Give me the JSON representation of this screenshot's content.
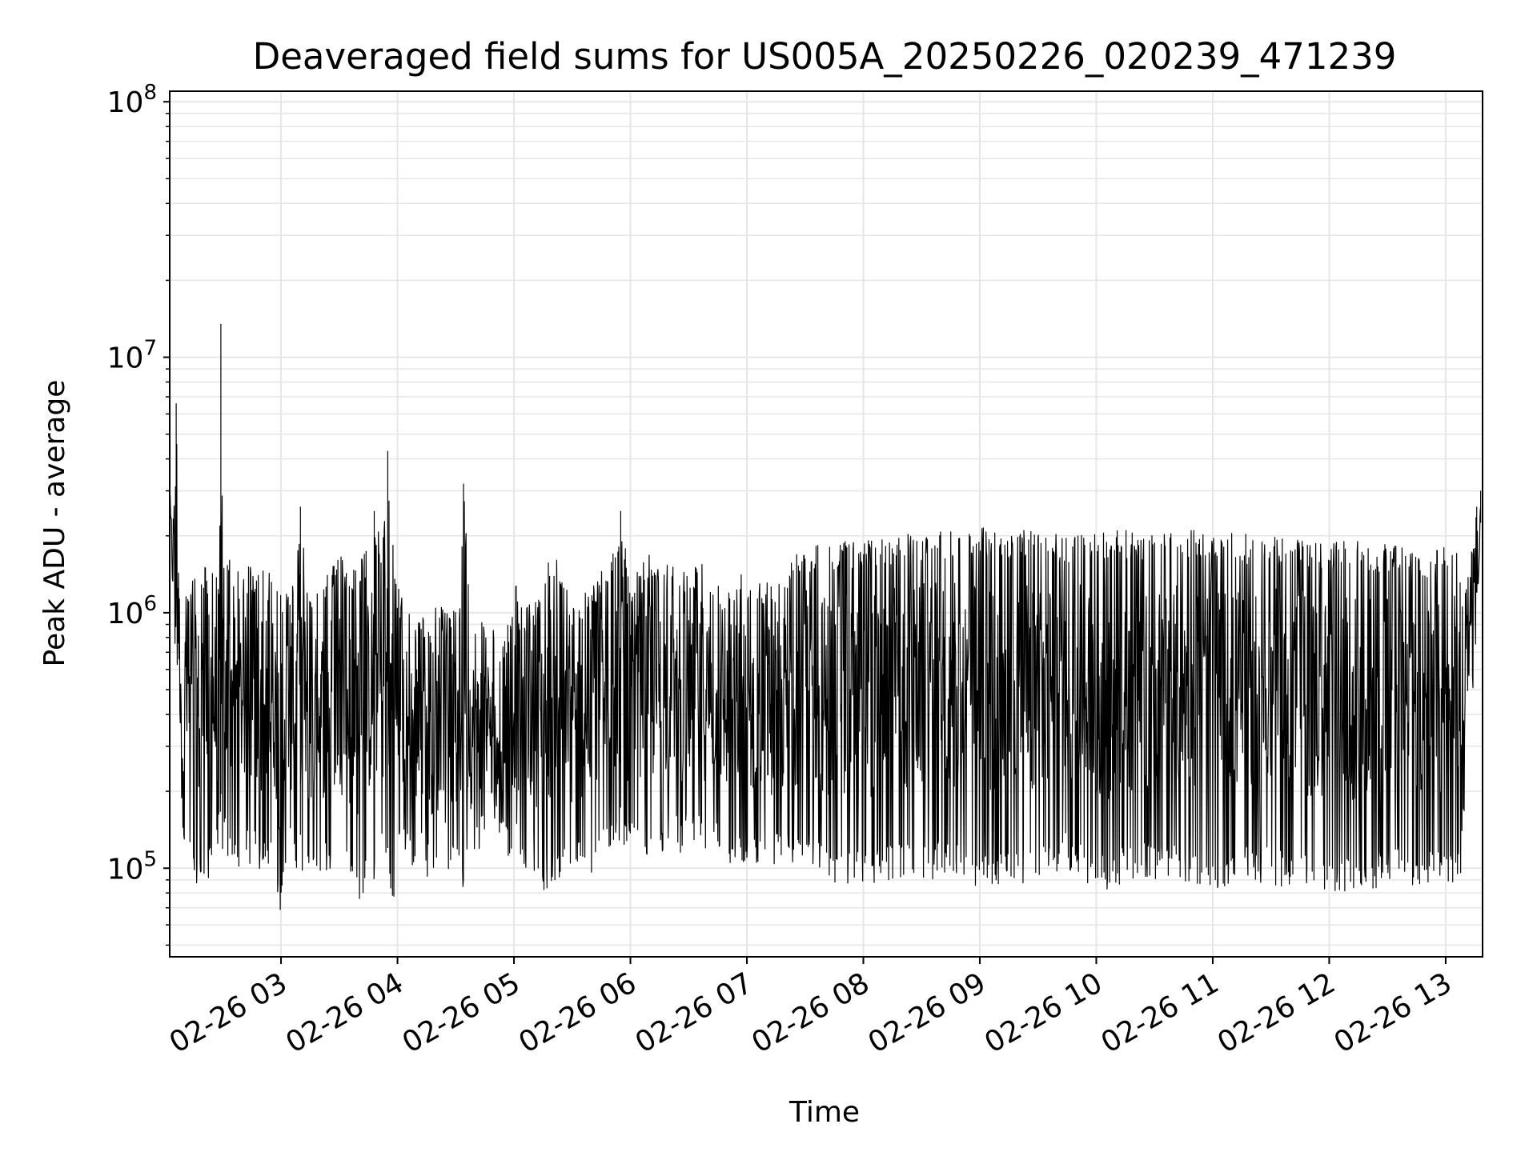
{
  "chart_data": {
    "type": "line",
    "title": "Deaveraged field sums for US005A_20250226_020239_471239",
    "xlabel": "Time",
    "ylabel": "Peak ADU - average",
    "yscale": "log",
    "ylim": [
      45000,
      110000000
    ],
    "xlim": [
      "2025-02-26T02:02:39",
      "2025-02-26T13:19:00"
    ],
    "x_ticks": [
      "2025-02-26T03:00",
      "2025-02-26T04:00",
      "2025-02-26T05:00",
      "2025-02-26T06:00",
      "2025-02-26T07:00",
      "2025-02-26T08:00",
      "2025-02-26T09:00",
      "2025-02-26T10:00",
      "2025-02-26T11:00",
      "2025-02-26T12:00",
      "2025-02-26T13:00"
    ],
    "x_tick_labels": [
      "02-26 03",
      "02-26 04",
      "02-26 05",
      "02-26 06",
      "02-26 07",
      "02-26 08",
      "02-26 09",
      "02-26 10",
      "02-26 11",
      "02-26 12",
      "02-26 13"
    ],
    "y_ticks": [
      100000,
      1000000,
      10000000,
      100000000
    ],
    "y_tick_labels": [
      {
        "base": "10",
        "exp": "5"
      },
      {
        "base": "10",
        "exp": "6"
      },
      {
        "base": "10",
        "exp": "7"
      },
      {
        "base": "10",
        "exp": "8"
      }
    ],
    "grid": true,
    "line_color": "#000000",
    "grid_color": "#e6e6e6",
    "series": [
      {
        "x": [
          "2025-02-26T02:02:39",
          "2025-02-26T02:04",
          "2025-02-26T02:05",
          "2025-02-26T02:06",
          "2025-02-26T02:07",
          "2025-02-26T02:08",
          "2025-02-26T02:10",
          "2025-02-26T02:12",
          "2025-02-26T02:14",
          "2025-02-26T02:16",
          "2025-02-26T02:18",
          "2025-02-26T02:20",
          "2025-02-26T02:22",
          "2025-02-26T02:24",
          "2025-02-26T02:26",
          "2025-02-26T02:28",
          "2025-02-26T02:29",
          "2025-02-26T02:30",
          "2025-02-26T02:31",
          "2025-02-26T02:33",
          "2025-02-26T02:35",
          "2025-02-26T02:38",
          "2025-02-26T02:41",
          "2025-02-26T02:44",
          "2025-02-26T02:47",
          "2025-02-26T02:50",
          "2025-02-26T02:53",
          "2025-02-26T02:56",
          "2025-02-26T03:00",
          "2025-02-26T03:03",
          "2025-02-26T03:07",
          "2025-02-26T03:10",
          "2025-02-26T03:14",
          "2025-02-26T03:18",
          "2025-02-26T03:22",
          "2025-02-26T03:26",
          "2025-02-26T03:30",
          "2025-02-26T03:34",
          "2025-02-26T03:38",
          "2025-02-26T03:42",
          "2025-02-26T03:45",
          "2025-02-26T03:48",
          "2025-02-26T03:52",
          "2025-02-26T03:55",
          "2025-02-26T03:57",
          "2025-02-26T04:00",
          "2025-02-26T04:04",
          "2025-02-26T04:08",
          "2025-02-26T04:12",
          "2025-02-26T04:16",
          "2025-02-26T04:20",
          "2025-02-26T04:24",
          "2025-02-26T04:28",
          "2025-02-26T04:32",
          "2025-02-26T04:34",
          "2025-02-26T04:38",
          "2025-02-26T04:42",
          "2025-02-26T04:46",
          "2025-02-26T04:50",
          "2025-02-26T04:55",
          "2025-02-26T05:00",
          "2025-02-26T05:05",
          "2025-02-26T05:10",
          "2025-02-26T05:15",
          "2025-02-26T05:20",
          "2025-02-26T05:25",
          "2025-02-26T05:30",
          "2025-02-26T05:35",
          "2025-02-26T05:40",
          "2025-02-26T05:45",
          "2025-02-26T05:50",
          "2025-02-26T05:55",
          "2025-02-26T06:00",
          "2025-02-26T06:05",
          "2025-02-26T06:10",
          "2025-02-26T06:15",
          "2025-02-26T06:20",
          "2025-02-26T06:25",
          "2025-02-26T06:30",
          "2025-02-26T06:35",
          "2025-02-26T06:40",
          "2025-02-26T06:45",
          "2025-02-26T06:50",
          "2025-02-26T06:55",
          "2025-02-26T07:00",
          "2025-02-26T07:10",
          "2025-02-26T07:20",
          "2025-02-26T07:30",
          "2025-02-26T07:40",
          "2025-02-26T07:50",
          "2025-02-26T08:00",
          "2025-02-26T08:15",
          "2025-02-26T08:30",
          "2025-02-26T08:45",
          "2025-02-26T09:00",
          "2025-02-26T09:15",
          "2025-02-26T09:30",
          "2025-02-26T09:45",
          "2025-02-26T10:00",
          "2025-02-26T10:15",
          "2025-02-26T10:30",
          "2025-02-26T10:45",
          "2025-02-26T11:00",
          "2025-02-26T11:15",
          "2025-02-26T11:30",
          "2025-02-26T11:45",
          "2025-02-26T12:00",
          "2025-02-26T12:15",
          "2025-02-26T12:30",
          "2025-02-26T12:45",
          "2025-02-26T13:00",
          "2025-02-26T13:05",
          "2025-02-26T13:08",
          "2025-02-26T13:11",
          "2025-02-26T13:14",
          "2025-02-26T13:16",
          "2025-02-26T13:18"
        ],
        "upper": [
          3200000,
          2800000,
          3000000,
          6600000,
          2400000,
          1600000,
          1400000,
          1300000,
          1400000,
          1500000,
          1400000,
          1600000,
          1500000,
          1700000,
          1500000,
          1600000,
          13500000,
          1600000,
          1500000,
          1600000,
          1700000,
          1500000,
          1400000,
          1600000,
          1300000,
          1800000,
          1400000,
          1500000,
          1200000,
          1400000,
          1300000,
          2600000,
          1300000,
          1200000,
          1400000,
          1600000,
          1800000,
          1400000,
          1500000,
          1700000,
          1800000,
          2500000,
          1800000,
          4300000,
          2300000,
          1300000,
          1100000,
          950000,
          1000000,
          900000,
          1200000,
          1000000,
          1000000,
          1100000,
          3200000,
          950000,
          1050000,
          900000,
          850000,
          750000,
          1300000,
          1400000,
          1000000,
          1500000,
          1900000,
          1400000,
          1100000,
          1200000,
          1300000,
          1500000,
          1600000,
          2500000,
          1300000,
          1500000,
          1800000,
          1700000,
          1500000,
          1600000,
          1400000,
          1800000,
          1600000,
          1300000,
          1300000,
          1500000,
          1400000,
          1400000,
          1500000,
          1900000,
          1900000,
          1900000,
          2000000,
          2000000,
          2100000,
          2100000,
          2200000,
          2100000,
          2100000,
          2050000,
          2100000,
          2100000,
          2050000,
          2100000,
          2100000,
          2050000,
          2000000,
          2000000,
          1900000,
          1900000,
          1900000,
          1800000,
          1800000,
          1900000,
          1300000,
          1500000,
          2000000,
          2600000,
          3000000
        ],
        "lower": [
          2000000,
          900000,
          600000,
          800000,
          350000,
          200000,
          120000,
          130000,
          75000,
          90000,
          80000,
          100000,
          75000,
          110000,
          90000,
          120000,
          130000,
          85000,
          120000,
          95000,
          110000,
          100000,
          120000,
          95000,
          110000,
          90000,
          100000,
          115000,
          57000,
          110000,
          100000,
          90000,
          85000,
          100000,
          95000,
          90000,
          100000,
          85000,
          75000,
          70000,
          90000,
          85000,
          100000,
          80000,
          67000,
          100000,
          110000,
          95000,
          100000,
          90000,
          85000,
          75000,
          95000,
          80000,
          82000,
          95000,
          110000,
          140000,
          150000,
          110000,
          110000,
          100000,
          100000,
          78000,
          90000,
          85000,
          90000,
          95000,
          88000,
          110000,
          120000,
          115000,
          110000,
          120000,
          105000,
          110000,
          130000,
          110000,
          120000,
          115000,
          110000,
          115000,
          100000,
          105000,
          92000,
          95000,
          100000,
          110000,
          90000,
          80000,
          85000,
          90000,
          90000,
          92000,
          80000,
          85000,
          90000,
          100000,
          78000,
          88000,
          90000,
          88000,
          82000,
          90000,
          85000,
          85000,
          80000,
          75000,
          90000,
          85000,
          82000,
          90000,
          85000,
          300000,
          500000,
          800000,
          1500000
        ]
      }
    ]
  }
}
